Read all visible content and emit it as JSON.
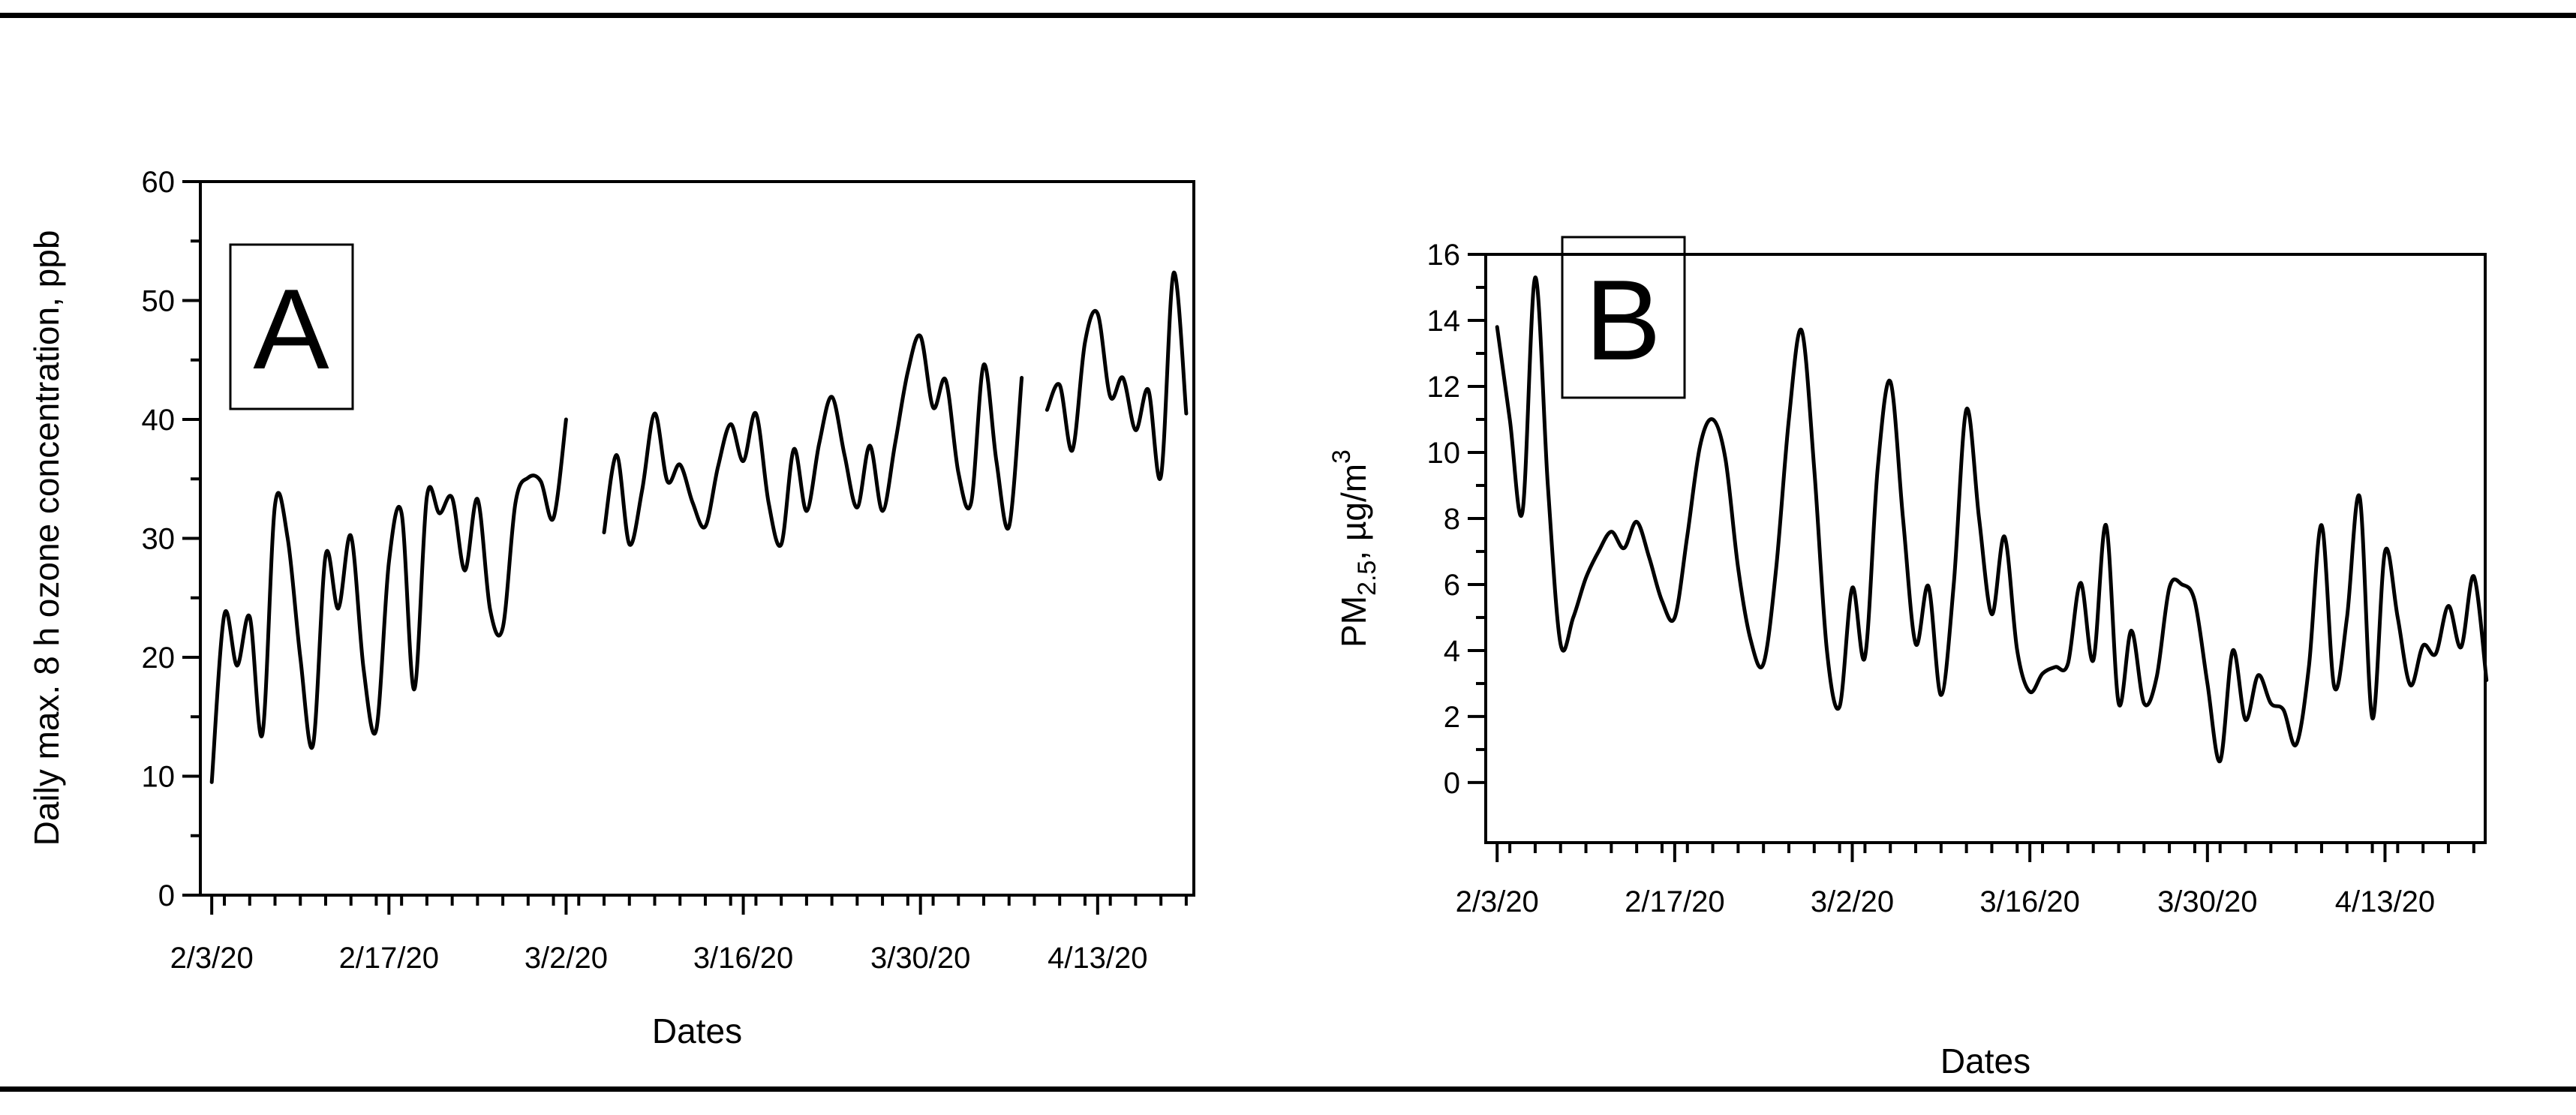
{
  "figure": {
    "background": "#ffffff",
    "rule_color": "#000000",
    "line_color": "#000000"
  },
  "chart_data": [
    {
      "type": "line",
      "panel_label": "A",
      "xlabel": "Dates",
      "ylabel": "Daily max. 8 h ozone concentration, ppb",
      "ylim": [
        0,
        60
      ],
      "ytick_step": 10,
      "yminor_step": 5,
      "ytick_labels": [
        "0",
        "10",
        "20",
        "30",
        "40",
        "50",
        "60"
      ],
      "x_tick_labels": [
        "2/3/20",
        "2/17/20",
        "3/2/20",
        "3/16/20",
        "3/30/20",
        "4/13/20"
      ],
      "x_tick_days": [
        0,
        14,
        28,
        42,
        56,
        70
      ],
      "x_minor_step_days": 2,
      "x_range_days": [
        -0.9,
        77.6
      ],
      "grid": "off",
      "legend": "none",
      "line_color": "#000000",
      "dates": [
        "2/3/20",
        "2/4/20",
        "2/5/20",
        "2/6/20",
        "2/7/20",
        "2/8/20",
        "2/9/20",
        "2/10/20",
        "2/11/20",
        "2/12/20",
        "2/13/20",
        "2/14/20",
        "2/15/20",
        "2/16/20",
        "2/17/20",
        "2/18/20",
        "2/19/20",
        "2/20/20",
        "2/21/20",
        "2/22/20",
        "2/23/20",
        "2/24/20",
        "2/25/20",
        "2/26/20",
        "2/27/20",
        "2/28/20",
        "2/29/20",
        "3/1/20",
        "3/2/20",
        "3/3/20",
        "3/4/20",
        "3/5/20",
        "3/6/20",
        "3/7/20",
        "3/8/20",
        "3/9/20",
        "3/10/20",
        "3/11/20",
        "3/12/20",
        "3/13/20",
        "3/14/20",
        "3/15/20",
        "3/16/20",
        "3/17/20",
        "3/18/20",
        "3/19/20",
        "3/20/20",
        "3/21/20",
        "3/22/20",
        "3/23/20",
        "3/24/20",
        "3/25/20",
        "3/26/20",
        "3/27/20",
        "3/28/20",
        "3/29/20",
        "3/30/20",
        "3/31/20",
        "4/1/20",
        "4/2/20",
        "4/3/20",
        "4/4/20",
        "4/5/20",
        "4/6/20",
        "4/7/20",
        "4/8/20",
        "4/9/20",
        "4/10/20",
        "4/11/20",
        "4/12/20",
        "4/13/20",
        "4/14/20",
        "4/15/20",
        "4/16/20",
        "4/17/20",
        "4/18/20",
        "4/19/20",
        "4/20/20"
      ],
      "values": [
        9.5,
        23.6,
        19.3,
        23.4,
        13.5,
        32.8,
        30.0,
        20.0,
        12.6,
        28.6,
        24.1,
        30.2,
        19.0,
        13.9,
        28.0,
        32.1,
        17.3,
        33.5,
        32.1,
        33.4,
        27.3,
        33.3,
        24.0,
        22.5,
        33.0,
        35.1,
        34.8,
        31.7,
        40.0,
        null,
        null,
        30.5,
        37.0,
        29.5,
        34.0,
        40.5,
        34.8,
        36.2,
        33.0,
        31.0,
        36.0,
        39.6,
        36.5,
        40.5,
        33.0,
        29.5,
        37.5,
        32.3,
        38.0,
        41.9,
        37.0,
        32.6,
        37.8,
        32.3,
        38.0,
        44.0,
        47.0,
        41.0,
        43.3,
        35.5,
        33.0,
        44.6,
        36.5,
        31.0,
        43.5,
        null,
        40.8,
        42.9,
        37.4,
        46.5,
        48.9,
        41.9,
        43.5,
        39.1,
        42.5,
        35.2,
        52.3,
        40.5
      ]
    },
    {
      "type": "line",
      "panel_label": "B",
      "xlabel": "Dates",
      "ylabel_parts": [
        "PM",
        "2.5",
        ", µg/m",
        "3"
      ],
      "ylabel_plain": "PM2.5, µg/m3",
      "ylim": [
        0,
        16
      ],
      "y_frame_min": -1.82,
      "ytick_step": 2,
      "yminor_step": 1,
      "ytick_labels": [
        "0",
        "2",
        "4",
        "6",
        "8",
        "10",
        "12",
        "14",
        "16"
      ],
      "x_tick_labels": [
        "2/3/20",
        "2/17/20",
        "3/2/20",
        "3/16/20",
        "3/30/20",
        "4/13/20"
      ],
      "x_tick_days": [
        0,
        14,
        28,
        42,
        56,
        70
      ],
      "x_minor_step_days": 2,
      "x_range_days": [
        -0.9,
        77.9
      ],
      "grid": "off",
      "legend": "none",
      "line_color": "#000000",
      "dates": [
        "2/3/20",
        "2/4/20",
        "2/5/20",
        "2/6/20",
        "2/7/20",
        "2/8/20",
        "2/9/20",
        "2/10/20",
        "2/11/20",
        "2/12/20",
        "2/13/20",
        "2/14/20",
        "2/15/20",
        "2/16/20",
        "2/17/20",
        "2/18/20",
        "2/19/20",
        "2/20/20",
        "2/21/20",
        "2/22/20",
        "2/23/20",
        "2/24/20",
        "2/25/20",
        "2/26/20",
        "2/27/20",
        "2/28/20",
        "2/29/20",
        "3/1/20",
        "3/2/20",
        "3/3/20",
        "3/4/20",
        "3/5/20",
        "3/6/20",
        "3/7/20",
        "3/8/20",
        "3/9/20",
        "3/10/20",
        "3/11/20",
        "3/12/20",
        "3/13/20",
        "3/14/20",
        "3/15/20",
        "3/16/20",
        "3/17/20",
        "3/18/20",
        "3/19/20",
        "3/20/20",
        "3/21/20",
        "3/22/20",
        "3/23/20",
        "3/24/20",
        "3/25/20",
        "3/26/20",
        "3/27/20",
        "3/28/20",
        "3/29/20",
        "3/30/20",
        "3/31/20",
        "4/1/20",
        "4/2/20",
        "4/3/20",
        "4/4/20",
        "4/5/20",
        "4/6/20",
        "4/7/20",
        "4/8/20",
        "4/9/20",
        "4/10/20",
        "4/11/20",
        "4/12/20",
        "4/13/20",
        "4/14/20",
        "4/15/20",
        "4/16/20",
        "4/17/20",
        "4/18/20",
        "4/19/20",
        "4/20/20",
        "4/21/20"
      ],
      "values": [
        13.8,
        11.0,
        8.2,
        15.3,
        9.0,
        4.2,
        5.0,
        6.2,
        7.0,
        7.6,
        7.1,
        7.9,
        6.8,
        5.5,
        5.0,
        7.5,
        10.2,
        11.0,
        9.8,
        6.5,
        4.3,
        3.6,
        6.5,
        11.0,
        13.7,
        9.5,
        4.0,
        2.3,
        5.9,
        3.8,
        9.5,
        12.15,
        8.0,
        4.2,
        5.95,
        2.65,
        6.0,
        11.3,
        8.0,
        5.1,
        7.45,
        4.0,
        2.75,
        3.3,
        3.5,
        3.6,
        6.05,
        3.7,
        7.8,
        2.4,
        4.6,
        2.4,
        3.2,
        5.9,
        6.0,
        5.5,
        3.0,
        0.65,
        4.0,
        1.9,
        3.25,
        2.4,
        2.2,
        1.15,
        3.5,
        7.8,
        2.9,
        5.0,
        8.65,
        1.95,
        7.0,
        5.0,
        2.95,
        4.15,
        3.9,
        5.35,
        4.1,
        6.25,
        3.1
      ]
    }
  ]
}
